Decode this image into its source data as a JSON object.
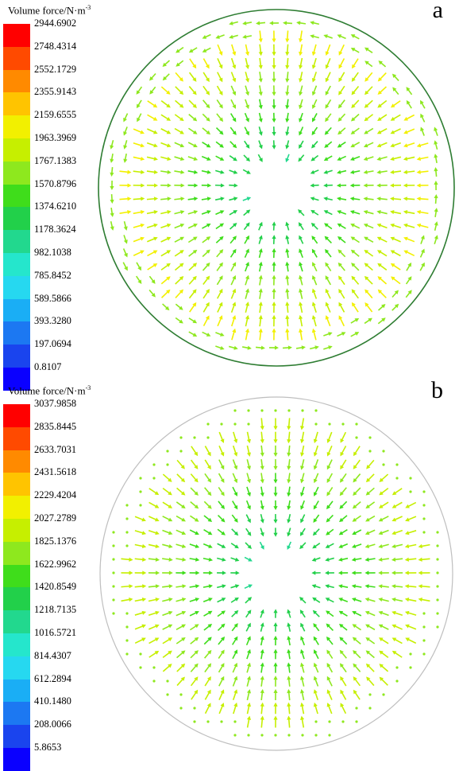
{
  "panels": [
    {
      "letter": "a",
      "legend_title_main": "Volume force/N·m",
      "legend_title_exp": "-3",
      "ticks": [
        "2944.6902",
        "2748.4314",
        "2552.1729",
        "2355.9143",
        "2159.6555",
        "1963.3969",
        "1767.1383",
        "1570.8796",
        "1374.6210",
        "1178.3624",
        "982.1038",
        "785.8452",
        "589.5866",
        "393.3280",
        "197.0694",
        "0.8107"
      ],
      "boundary_color": "#2e7d32",
      "rim_arrows_tangential": true
    },
    {
      "letter": "b",
      "legend_title_main": "Volume force/N·m",
      "legend_title_exp": "-3",
      "ticks": [
        "3037.9858",
        "2835.8445",
        "2633.7031",
        "2431.5618",
        "2229.4204",
        "2027.2789",
        "1825.1376",
        "1622.9962",
        "1420.8549",
        "1218.7135",
        "1016.5721",
        "814.4307",
        "612.2894",
        "410.1480",
        "208.0066",
        "5.8653"
      ],
      "boundary_color": "#bfbfbf",
      "rim_arrows_tangential": false
    }
  ],
  "colormap": [
    "#ff0000",
    "#ff4a00",
    "#ff8a00",
    "#ffc400",
    "#f2f000",
    "#c6ef00",
    "#8ee81e",
    "#3fdd1b",
    "#22d04a",
    "#22d88e",
    "#25e6cc",
    "#26d8f0",
    "#1aaef5",
    "#1c78f2",
    "#1a44ee",
    "#0a00ff"
  ]
}
